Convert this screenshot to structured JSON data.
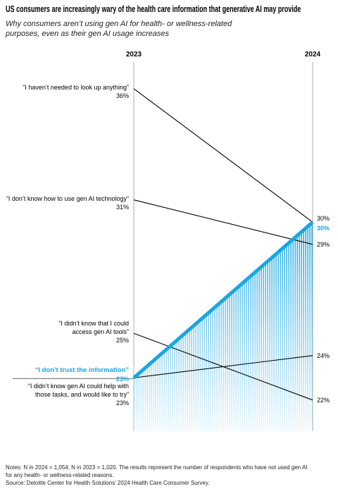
{
  "chart_data": {
    "type": "slope",
    "title": "US consumers are increasingly wary of the health care information that generative AI may provide",
    "subtitle": "Why consumers aren’t using gen AI for health- or wellness-related purposes, even as their gen AI usage increases",
    "x": [
      "2023",
      "2024"
    ],
    "ylim": [
      20.6,
      37.2
    ],
    "series": [
      {
        "name": "“I haven’t needed to look up anything”",
        "color": "#000000",
        "values": [
          36,
          30
        ],
        "value_labels": [
          "36%",
          "30%"
        ]
      },
      {
        "name": "“I don’t know how to use gen AI technology”",
        "color": "#000000",
        "values": [
          31,
          29
        ],
        "value_labels": [
          "31%",
          "29%"
        ]
      },
      {
        "name": "“I didn’t know that I could access gen AI tools”",
        "color": "#000000",
        "values": [
          25,
          22
        ],
        "value_labels": [
          "25%",
          "22%"
        ]
      },
      {
        "name": "“I don’t trust the information”",
        "color": "#1aa6e0",
        "highlight": true,
        "values": [
          23,
          30
        ],
        "value_labels": [
          "23%",
          "30%"
        ]
      },
      {
        "name": "“I didn’t know gen AI could help with those tasks, and would like to try”",
        "color": "#000000",
        "values": [
          23,
          24
        ],
        "value_labels": [
          "23%",
          "24%"
        ]
      }
    ],
    "notes": "Notes: N in 2024 = 1,054; N in 2023 = 1,020. The results represent the number of respondents who have not used gen AI for any health- or wellness-related reasons.",
    "source": "Source: Deloitte Center for Health Solutions’ 2024 Health Care Consumer Survey."
  }
}
